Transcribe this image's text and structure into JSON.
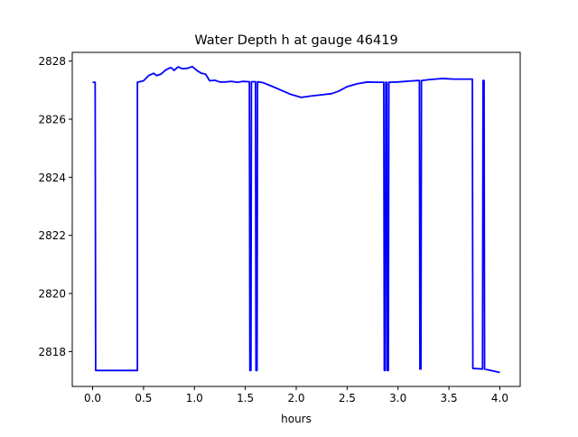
{
  "chart_data": {
    "type": "line",
    "title": "Water Depth h at gauge 46419",
    "xlabel": "hours",
    "ylabel": "",
    "xlim": [
      -0.2,
      4.2
    ],
    "ylim": [
      2816.8,
      2828.3
    ],
    "xticks": [
      0.0,
      0.5,
      1.0,
      1.5,
      2.0,
      2.5,
      3.0,
      3.5,
      4.0
    ],
    "xtick_labels": [
      "0.0",
      "0.5",
      "1.0",
      "1.5",
      "2.0",
      "2.5",
      "3.0",
      "3.5",
      "4.0"
    ],
    "yticks": [
      2818,
      2820,
      2822,
      2824,
      2826,
      2828
    ],
    "ytick_labels": [
      "2818",
      "2820",
      "2822",
      "2824",
      "2826",
      "2828"
    ],
    "grid": false,
    "legend": "none",
    "series": [
      {
        "color": "#0000ff",
        "x": [
          0.0,
          0.025,
          0.03,
          0.44,
          0.44,
          0.5,
          0.55,
          0.6,
          0.63,
          0.67,
          0.72,
          0.77,
          0.8,
          0.84,
          0.88,
          0.93,
          0.98,
          1.03,
          1.07,
          1.11,
          1.15,
          1.2,
          1.25,
          1.3,
          1.36,
          1.42,
          1.48,
          1.53,
          1.54,
          1.545,
          1.555,
          1.56,
          1.6,
          1.605,
          1.615,
          1.62,
          1.68,
          1.75,
          1.85,
          1.95,
          2.05,
          2.15,
          2.25,
          2.35,
          2.42,
          2.5,
          2.6,
          2.7,
          2.8,
          2.86,
          2.865,
          2.875,
          2.88,
          2.89,
          2.895,
          2.905,
          2.91,
          3.0,
          3.1,
          3.2,
          3.21,
          3.215,
          3.225,
          3.23,
          3.3,
          3.43,
          3.55,
          3.63,
          3.73,
          3.735,
          3.83,
          3.835,
          3.845,
          3.85,
          4.0
        ],
        "y": [
          2827.27,
          2827.27,
          2817.35,
          2817.35,
          2827.27,
          2827.32,
          2827.5,
          2827.58,
          2827.5,
          2827.55,
          2827.7,
          2827.78,
          2827.68,
          2827.8,
          2827.74,
          2827.75,
          2827.81,
          2827.66,
          2827.58,
          2827.55,
          2827.32,
          2827.34,
          2827.28,
          2827.28,
          2827.3,
          2827.27,
          2827.3,
          2827.29,
          2827.29,
          2817.35,
          2817.35,
          2827.29,
          2827.29,
          2817.35,
          2817.35,
          2827.29,
          2827.25,
          2827.15,
          2827.0,
          2826.85,
          2826.75,
          2826.8,
          2826.84,
          2826.88,
          2826.97,
          2827.12,
          2827.22,
          2827.28,
          2827.27,
          2827.27,
          2817.35,
          2817.35,
          2827.27,
          2827.27,
          2817.35,
          2817.35,
          2827.27,
          2827.28,
          2827.31,
          2827.33,
          2827.33,
          2817.4,
          2817.4,
          2827.33,
          2827.36,
          2827.4,
          2827.38,
          2827.38,
          2827.38,
          2817.42,
          2817.4,
          2827.33,
          2827.33,
          2817.4,
          2817.28
        ]
      }
    ]
  }
}
